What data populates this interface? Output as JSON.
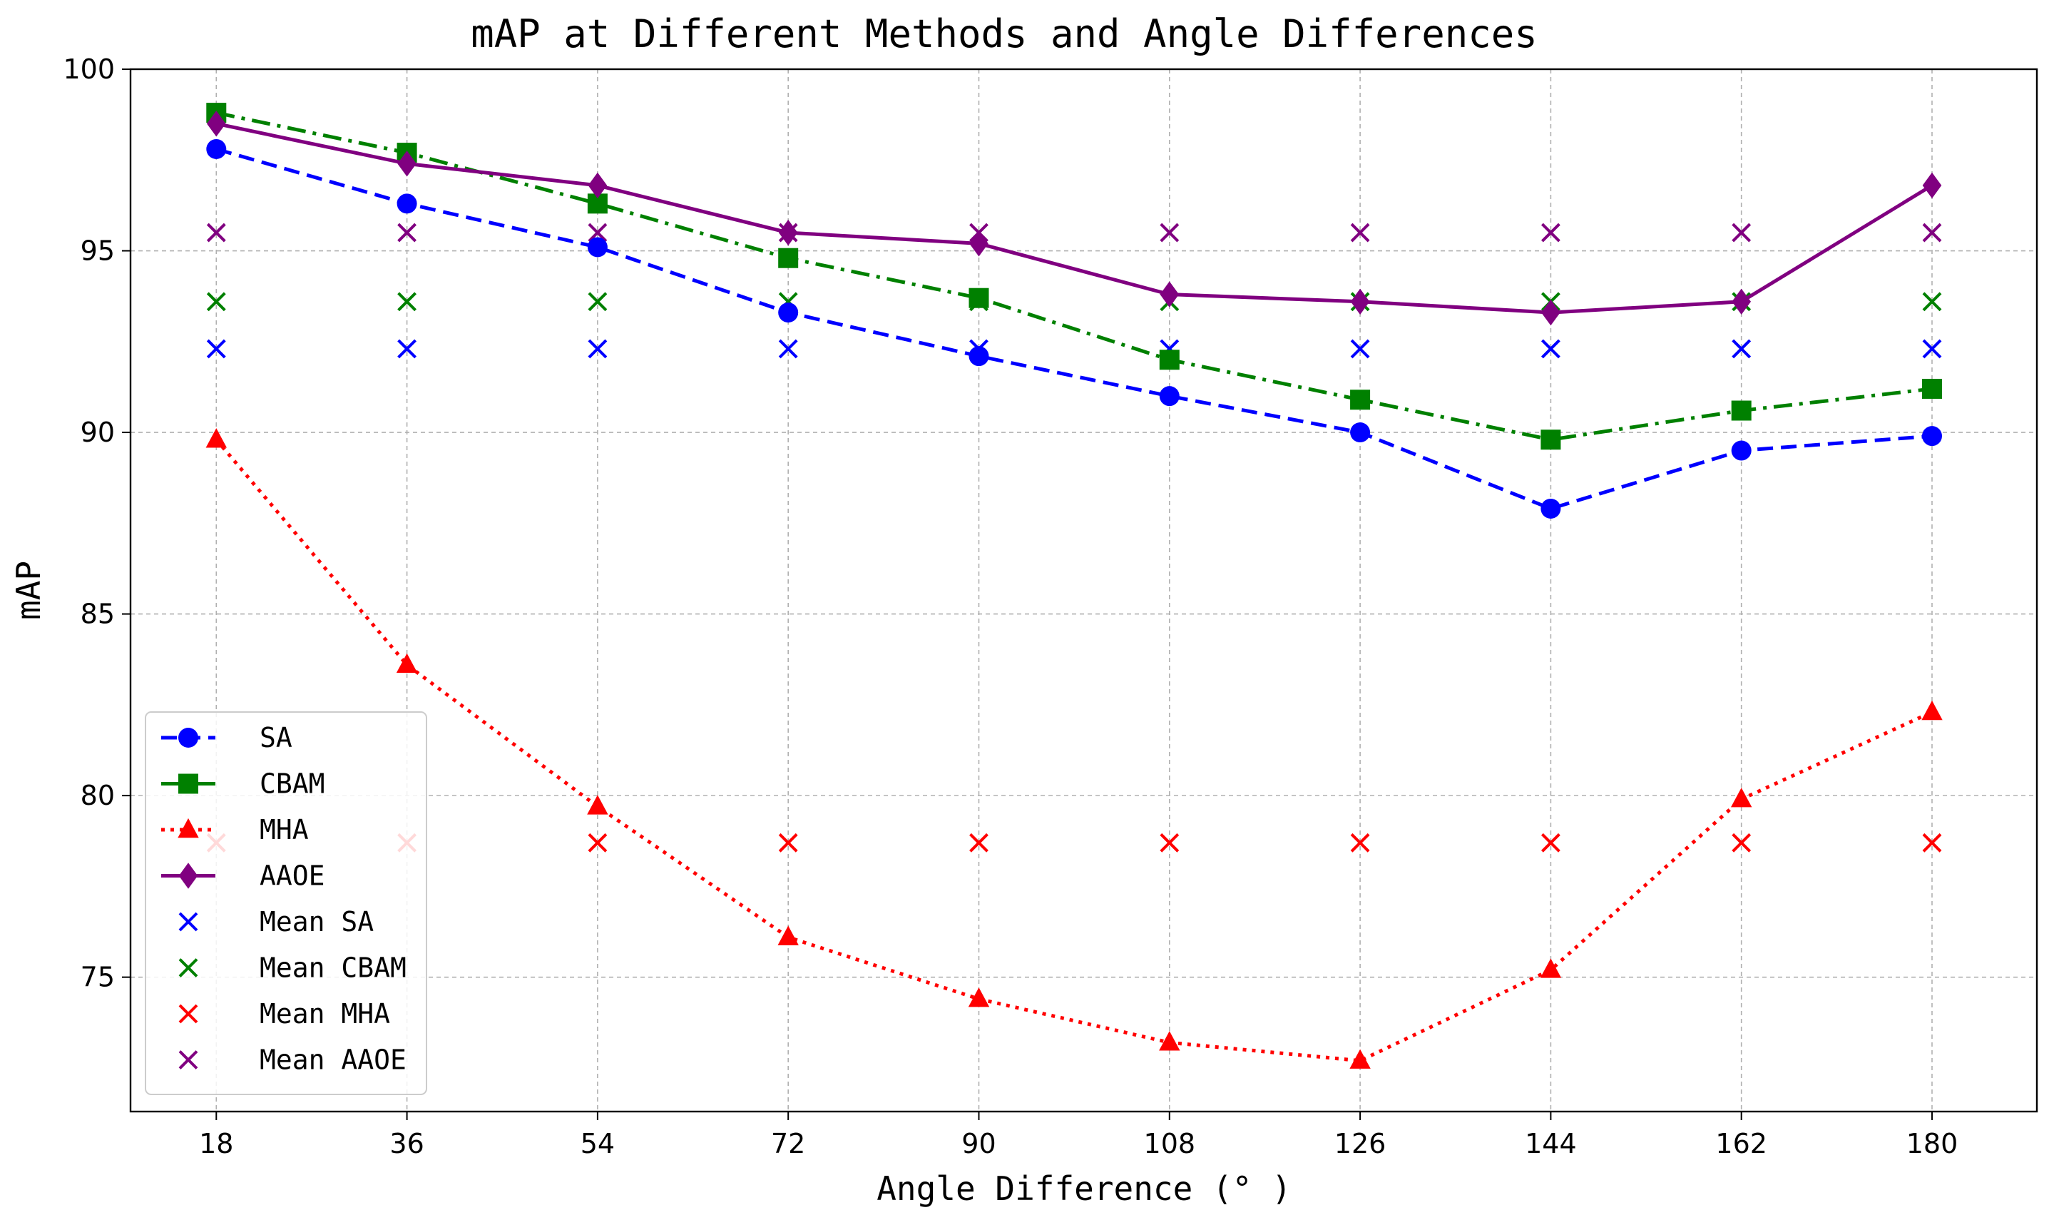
{
  "chart_data": {
    "type": "line",
    "title": "mAP at Different Methods and Angle Differences",
    "xlabel": "Angle Difference (° )",
    "ylabel": "mAP",
    "x": [
      18,
      36,
      54,
      72,
      90,
      108,
      126,
      144,
      162,
      180
    ],
    "xlim": [
      9.9,
      189.9
    ],
    "ylim": [
      71.3,
      100
    ],
    "yticks": [
      75,
      80,
      85,
      90,
      95,
      100
    ],
    "grid": true,
    "legend_position": "lower-left",
    "series": [
      {
        "name": "SA",
        "color": "#0000ff",
        "marker": "circle",
        "linestyle": "dashed",
        "values": [
          97.8,
          96.3,
          95.1,
          93.3,
          92.1,
          91.0,
          90.0,
          87.9,
          89.5,
          89.9
        ]
      },
      {
        "name": "CBAM",
        "color": "#008000",
        "marker": "square",
        "linestyle": "dashdot",
        "values": [
          98.8,
          97.7,
          96.3,
          94.8,
          93.7,
          92.0,
          90.9,
          89.8,
          90.6,
          91.2
        ]
      },
      {
        "name": "MHA",
        "color": "#ff0000",
        "marker": "triangle",
        "linestyle": "dotted",
        "values": [
          89.8,
          83.6,
          79.7,
          76.1,
          74.4,
          73.2,
          72.7,
          75.2,
          79.9,
          82.3
        ]
      },
      {
        "name": "AAOE",
        "color": "#800080",
        "marker": "diamond",
        "linestyle": "solid",
        "values": [
          98.5,
          97.4,
          96.8,
          95.5,
          95.2,
          93.8,
          93.6,
          93.3,
          93.6,
          96.8
        ]
      }
    ],
    "means": [
      {
        "name": "Mean SA",
        "color": "#0000ff",
        "value": 92.3
      },
      {
        "name": "Mean CBAM",
        "color": "#008000",
        "value": 93.6
      },
      {
        "name": "Mean MHA",
        "color": "#ff0000",
        "value": 78.7
      },
      {
        "name": "Mean AAOE",
        "color": "#800080",
        "value": 95.5
      }
    ]
  }
}
